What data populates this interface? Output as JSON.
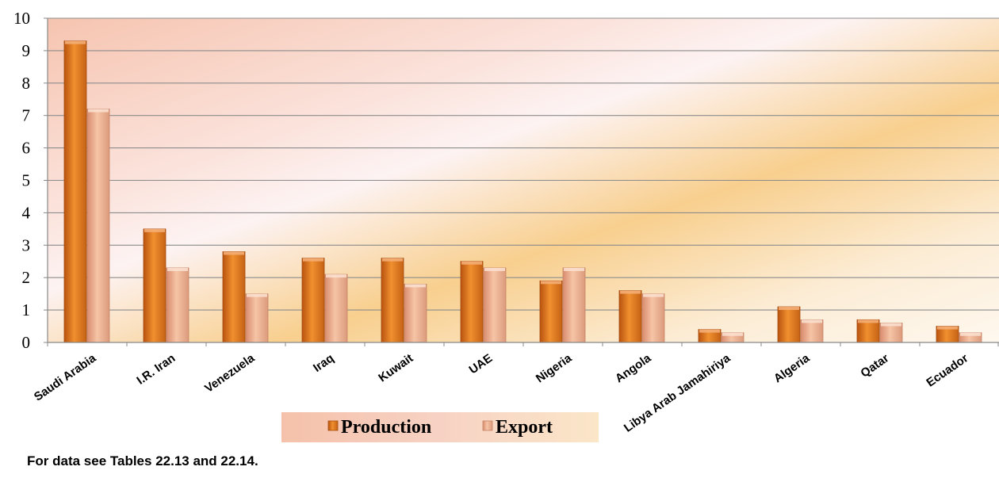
{
  "chart_data": {
    "type": "bar",
    "categories": [
      "Saudi Arabia",
      "I.R. Iran",
      "Venezuela",
      "Iraq",
      "Kuwait",
      "UAE",
      "Nigeria",
      "Angola",
      "Libya Arab Jamahiriya",
      "Algeria",
      "Qatar",
      "Ecuador"
    ],
    "series": [
      {
        "name": "Production",
        "values": [
          9.3,
          3.5,
          2.8,
          2.6,
          2.6,
          2.5,
          1.9,
          1.6,
          0.4,
          1.1,
          0.7,
          0.5
        ]
      },
      {
        "name": "Export",
        "values": [
          7.2,
          2.3,
          1.5,
          2.1,
          1.8,
          2.3,
          2.3,
          1.5,
          0.3,
          0.7,
          0.6,
          0.3
        ]
      }
    ],
    "ylim": [
      0,
      10
    ],
    "yticks": [
      "0",
      "1",
      "2",
      "3",
      "4",
      "5",
      "6",
      "7",
      "8",
      "9",
      "10"
    ],
    "grid": true,
    "legend_position": "bottom",
    "colors": {
      "production": "#e8822a",
      "export": "#f0b490",
      "background_start": "#f7c9b6",
      "background_accent": "#f6c780"
    }
  },
  "note": "For data see Tables 22.13 and 22.14."
}
